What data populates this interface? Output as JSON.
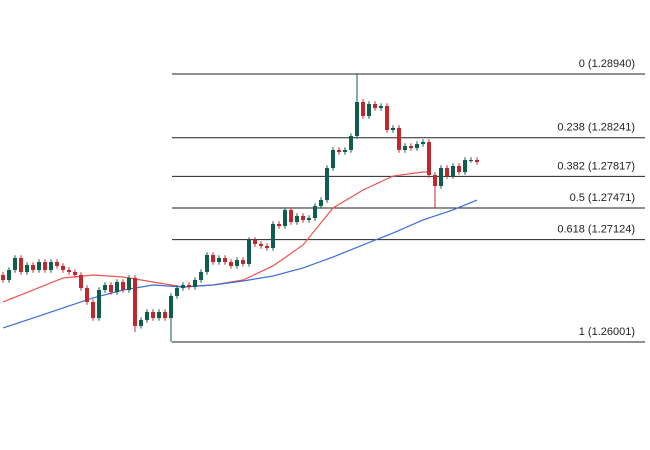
{
  "chart_data": {
    "type": "candlestick",
    "open": [
      1.26736,
      1.26681,
      1.26791,
      1.26922,
      1.26769,
      1.26845,
      1.26791,
      1.26878,
      1.26791,
      1.26878,
      1.26835,
      1.26791,
      1.26769,
      1.26736,
      1.26593,
      1.2644,
      1.26264,
      1.26571,
      1.26626,
      1.26549,
      1.26659,
      1.26571,
      1.26703,
      1.26177,
      1.26242,
      1.2633,
      1.26264,
      1.2633,
      1.26264,
      1.26506,
      1.26593,
      1.26626,
      1.26604,
      1.26681,
      1.26769,
      1.26955,
      1.26878,
      1.26922,
      1.26878,
      1.26835,
      1.269,
      1.26857,
      1.2712,
      1.27076,
      1.27054,
      1.27032,
      1.27295,
      1.27273,
      1.27449,
      1.27317,
      1.27383,
      1.27339,
      1.27361,
      1.27492,
      1.27558,
      1.27909,
      1.28107,
      1.28085,
      1.28107,
      1.2826,
      1.28633,
      1.28479,
      1.28611,
      1.28567,
      1.28589,
      1.28326,
      1.28348,
      1.28107,
      1.2815,
      1.28128,
      1.28172,
      1.28194,
      1.27832,
      1.27712,
      1.27909,
      1.27821,
      1.27931,
      1.27865,
      1.27997,
      1.27997
    ],
    "high": [
      1.26766,
      1.26821,
      1.26952,
      1.26952,
      1.26875,
      1.26875,
      1.26908,
      1.26908,
      1.26908,
      1.26908,
      1.26865,
      1.26821,
      1.26799,
      1.26766,
      1.26623,
      1.2647,
      1.26601,
      1.26656,
      1.26656,
      1.26689,
      1.26689,
      1.26733,
      1.26733,
      1.26272,
      1.2636,
      1.2636,
      1.2636,
      1.2636,
      1.26536,
      1.26623,
      1.26656,
      1.26656,
      1.26711,
      1.26799,
      1.26985,
      1.26985,
      1.26952,
      1.26952,
      1.26908,
      1.2693,
      1.2693,
      1.2715,
      1.2715,
      1.27106,
      1.27084,
      1.27325,
      1.27325,
      1.27479,
      1.27479,
      1.27413,
      1.27413,
      1.27391,
      1.27522,
      1.27588,
      1.27939,
      1.28137,
      1.28137,
      1.28137,
      1.2829,
      1.2894,
      1.28663,
      1.28641,
      1.28641,
      1.28619,
      1.28619,
      1.28378,
      1.28378,
      1.2818,
      1.2818,
      1.28202,
      1.28224,
      1.28224,
      1.27862,
      1.27939,
      1.27939,
      1.27961,
      1.27961,
      1.28027,
      1.28027,
      1.28027
    ],
    "low": [
      1.26651,
      1.26651,
      1.26761,
      1.26739,
      1.26739,
      1.26761,
      1.26761,
      1.26761,
      1.26761,
      1.26805,
      1.26761,
      1.26739,
      1.26706,
      1.26563,
      1.2641,
      1.26234,
      1.26234,
      1.26541,
      1.26519,
      1.26519,
      1.26541,
      1.26541,
      1.26111,
      1.26147,
      1.26212,
      1.26234,
      1.26234,
      1.26234,
      1.26001,
      1.26476,
      1.26563,
      1.26574,
      1.26574,
      1.26651,
      1.26739,
      1.26848,
      1.26848,
      1.26848,
      1.26805,
      1.26805,
      1.26827,
      1.26827,
      1.27046,
      1.27024,
      1.27002,
      1.27002,
      1.27243,
      1.27243,
      1.27287,
      1.27287,
      1.27309,
      1.27309,
      1.27331,
      1.27462,
      1.27528,
      1.27879,
      1.28055,
      1.28055,
      1.28077,
      1.2823,
      1.28449,
      1.28449,
      1.28537,
      1.28537,
      1.28296,
      1.28296,
      1.28077,
      1.28077,
      1.28098,
      1.28098,
      1.28142,
      1.27802,
      1.27471,
      1.27682,
      1.27791,
      1.27791,
      1.27835,
      1.27835,
      1.27967,
      1.27945
    ],
    "close": [
      1.26681,
      1.26791,
      1.26922,
      1.26769,
      1.26845,
      1.26791,
      1.26878,
      1.26791,
      1.26878,
      1.26835,
      1.26791,
      1.26769,
      1.26736,
      1.26593,
      1.2644,
      1.26264,
      1.26571,
      1.26626,
      1.26549,
      1.26659,
      1.26571,
      1.26703,
      1.26177,
      1.26242,
      1.2633,
      1.26264,
      1.2633,
      1.26264,
      1.26506,
      1.26593,
      1.26626,
      1.26604,
      1.26681,
      1.26769,
      1.26955,
      1.26878,
      1.26922,
      1.26878,
      1.26835,
      1.269,
      1.26857,
      1.2712,
      1.27076,
      1.27054,
      1.27032,
      1.27295,
      1.27273,
      1.27449,
      1.27317,
      1.27383,
      1.27339,
      1.27361,
      1.27492,
      1.27558,
      1.27909,
      1.28107,
      1.28085,
      1.28107,
      1.2826,
      1.28633,
      1.28479,
      1.28611,
      1.28567,
      1.28589,
      1.28326,
      1.28348,
      1.28107,
      1.2815,
      1.28128,
      1.28172,
      1.28194,
      1.27832,
      1.27712,
      1.27909,
      1.27821,
      1.27931,
      1.27865,
      1.27997,
      1.27997,
      1.27975
    ],
    "up_color": "#0f5e4d",
    "down_color": "#c0282d",
    "fib_levels": [
      {
        "value": 1.2894,
        "label": "0 (1.28940)"
      },
      {
        "value": 1.28241,
        "label": "0.238 (1.28241)"
      },
      {
        "value": 1.27817,
        "label": "0.382 (1.27817)"
      },
      {
        "value": 1.27471,
        "label": "0.5 (1.27471)"
      },
      {
        "value": 1.27124,
        "label": "0.618 (1.27124)"
      },
      {
        "value": 1.26001,
        "label": "1 (1.26001)"
      }
    ],
    "moving_averages": [
      {
        "color": "#ef5350",
        "x": [
          0,
          5,
          10,
          15,
          20,
          25,
          30,
          35,
          40,
          45,
          50,
          55,
          60,
          65,
          70,
          71
        ],
        "values": [
          1.2644,
          1.26571,
          1.26703,
          1.26736,
          1.26714,
          1.26659,
          1.26604,
          1.26626,
          1.26681,
          1.26835,
          1.27065,
          1.27471,
          1.27668,
          1.27821,
          1.27865,
          1.27865
        ]
      },
      {
        "color": "#3b6fd8",
        "x": [
          0,
          5,
          10,
          15,
          20,
          25,
          30,
          35,
          40,
          45,
          50,
          55,
          60,
          65,
          70,
          75,
          79
        ],
        "values": [
          1.26155,
          1.26264,
          1.26374,
          1.26484,
          1.26571,
          1.26626,
          1.26604,
          1.26626,
          1.2667,
          1.26725,
          1.26813,
          1.26933,
          1.27065,
          1.27196,
          1.27339,
          1.27449,
          1.27558
        ]
      }
    ]
  }
}
